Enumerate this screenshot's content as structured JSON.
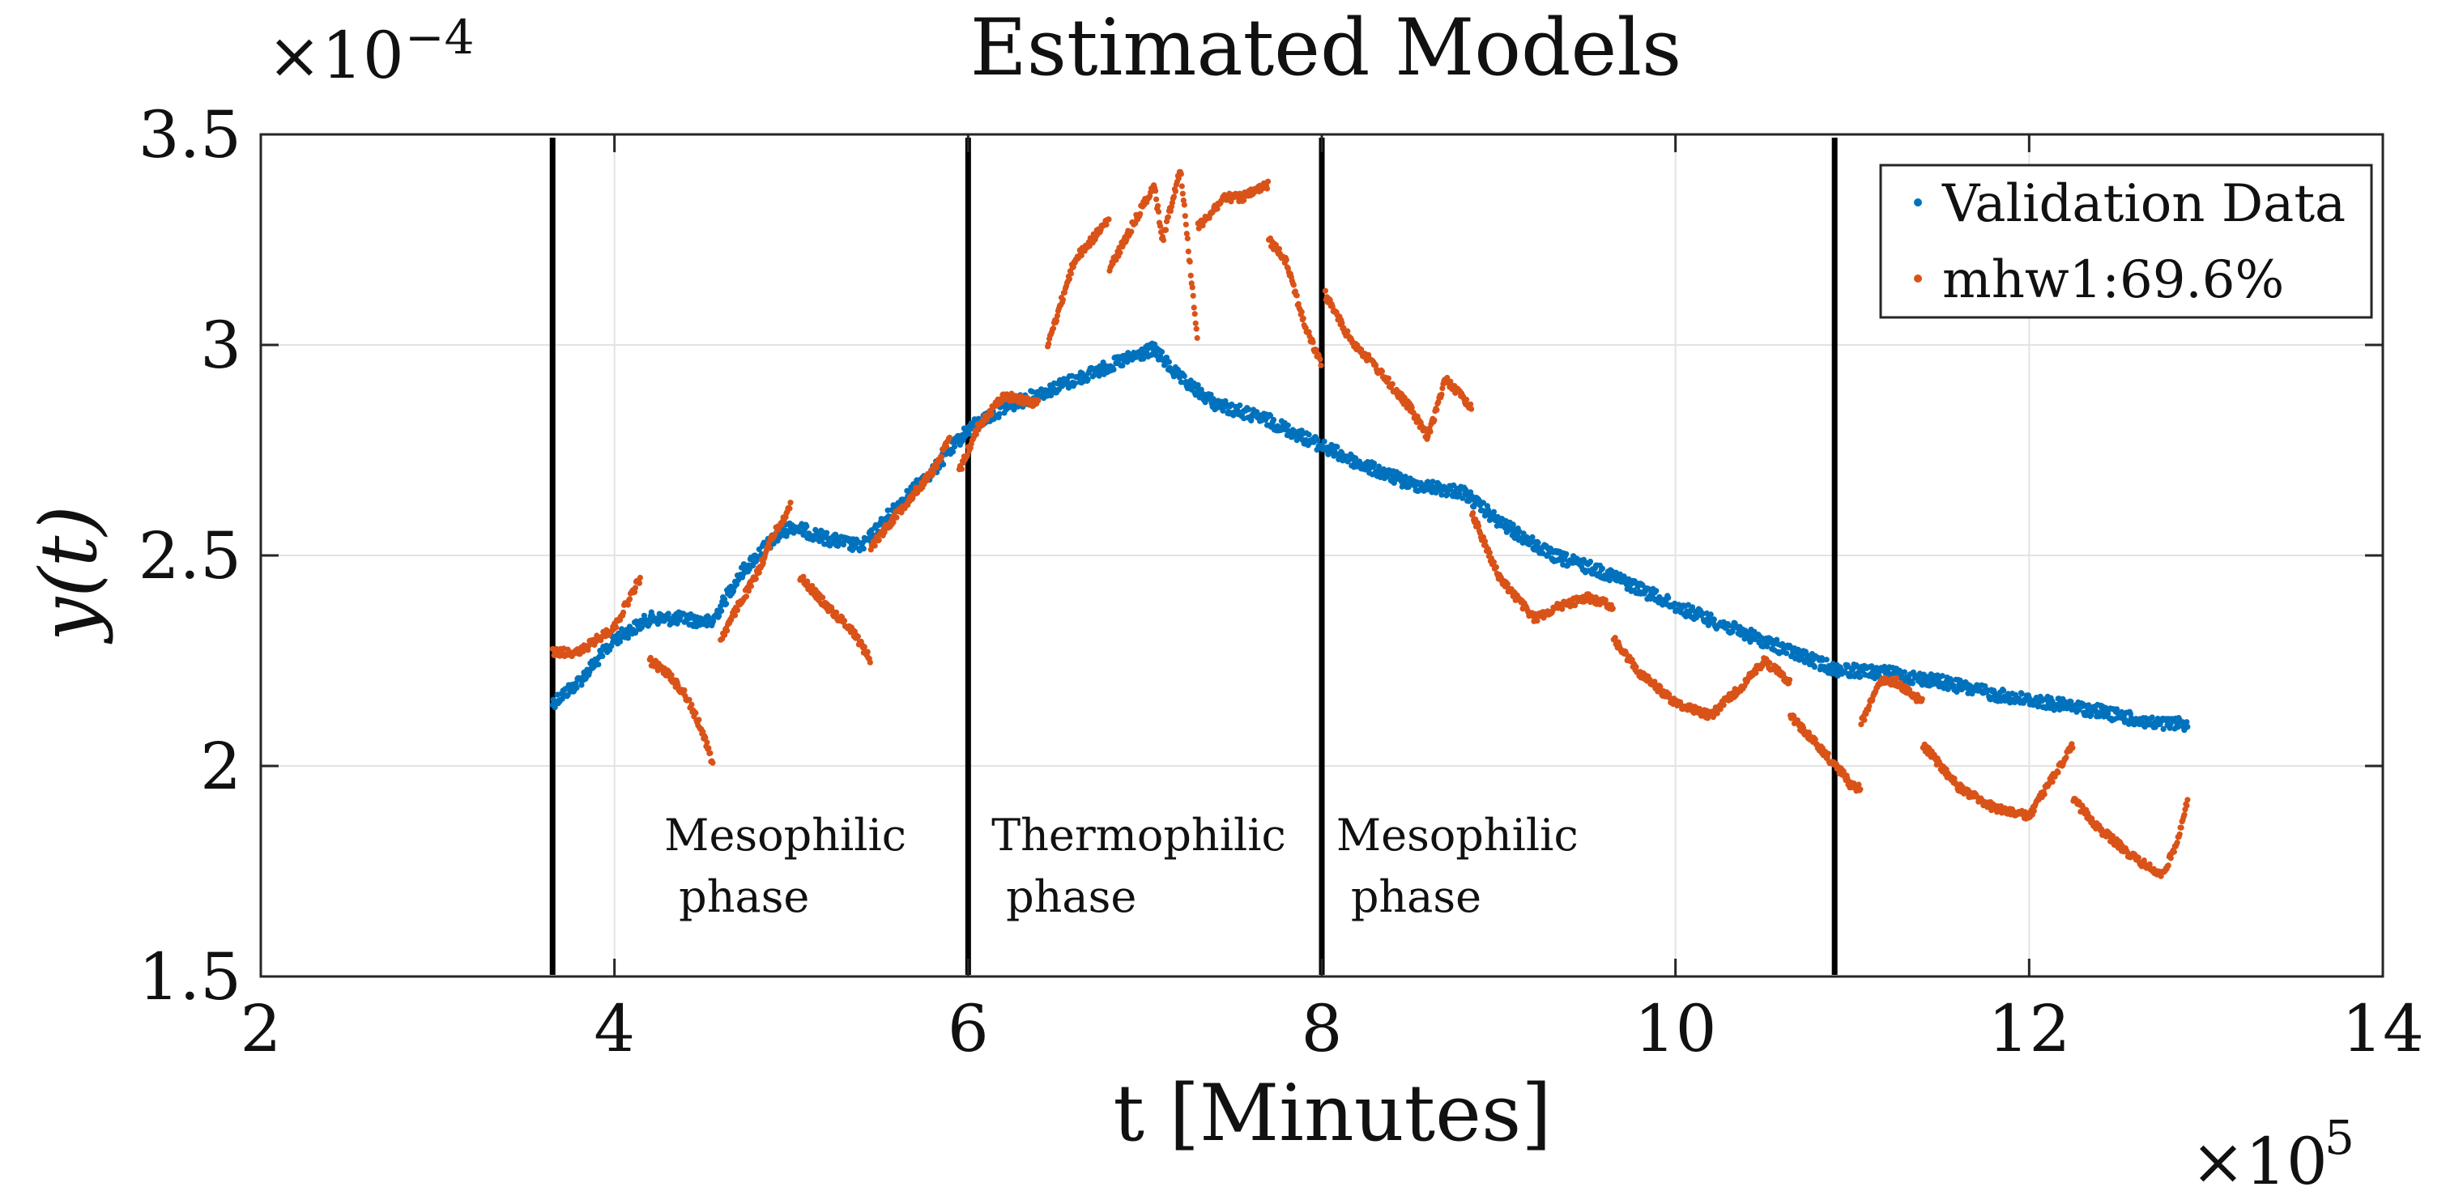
{
  "chart_data": {
    "type": "scatter",
    "title": "Estimated Models",
    "xlabel": "t [Minutes]",
    "ylabel": "y(t)",
    "x_exponent_label": "×10^5",
    "y_exponent_label": "×10^−4",
    "xlim": [
      2,
      14
    ],
    "ylim": [
      1.5,
      3.5
    ],
    "x_ticks": [
      "2",
      "4",
      "6",
      "8",
      "10",
      "12",
      "14"
    ],
    "y_ticks": [
      "1.5",
      "2",
      "2.5",
      "3",
      "3.5"
    ],
    "grid": true,
    "legend_position": "top-right",
    "vertical_lines": [
      3.65,
      6.0,
      8.0,
      10.9
    ],
    "phase_labels": [
      {
        "line1": "Mesophilic",
        "line2": "phase",
        "x": 4.3,
        "y": 1.8
      },
      {
        "line1": "Thermophilic",
        "line2": "phase",
        "x": 6.15,
        "y": 1.8
      },
      {
        "line1": "Mesophilic",
        "line2": "phase",
        "x": 8.1,
        "y": 1.8
      }
    ],
    "series": [
      {
        "name": "Validation Data",
        "color": "#0072BD",
        "x": [
          3.65,
          3.8,
          4.0,
          4.2,
          4.4,
          4.55,
          4.7,
          4.85,
          5.0,
          5.2,
          5.4,
          5.6,
          5.8,
          6.0,
          6.2,
          6.5,
          6.8,
          7.05,
          7.2,
          7.4,
          7.7,
          8.0,
          8.2,
          8.5,
          8.8,
          9.0,
          9.3,
          9.6,
          10.0,
          10.3,
          10.6,
          10.9,
          11.2,
          11.5,
          11.8,
          12.1,
          12.4,
          12.7,
          12.9
        ],
        "y": [
          2.15,
          2.2,
          2.3,
          2.35,
          2.35,
          2.34,
          2.45,
          2.52,
          2.57,
          2.54,
          2.52,
          2.62,
          2.7,
          2.8,
          2.85,
          2.9,
          2.95,
          2.99,
          2.92,
          2.86,
          2.82,
          2.76,
          2.72,
          2.67,
          2.65,
          2.58,
          2.5,
          2.46,
          2.38,
          2.33,
          2.28,
          2.23,
          2.22,
          2.2,
          2.17,
          2.15,
          2.13,
          2.1,
          2.1
        ]
      },
      {
        "name": "mhw1:69.6%",
        "color": "#D95319",
        "segments": [
          {
            "x": [
              3.65,
              3.8,
              4.0,
              4.15
            ],
            "y": [
              2.27,
              2.27,
              2.33,
              2.45
            ]
          },
          {
            "x": [
              4.2,
              4.3,
              4.4,
              4.5,
              4.56
            ],
            "y": [
              2.25,
              2.22,
              2.17,
              2.08,
              2.0
            ]
          },
          {
            "x": [
              4.6,
              4.7,
              4.8,
              4.9,
              5.0
            ],
            "y": [
              2.3,
              2.38,
              2.45,
              2.55,
              2.62
            ]
          },
          {
            "x": [
              5.05,
              5.2,
              5.35,
              5.45
            ],
            "y": [
              2.45,
              2.38,
              2.32,
              2.25
            ]
          },
          {
            "x": [
              5.45,
              5.6,
              5.8,
              5.9
            ],
            "y": [
              2.52,
              2.6,
              2.7,
              2.78
            ]
          },
          {
            "x": [
              5.95,
              6.05,
              6.2,
              6.4
            ],
            "y": [
              2.7,
              2.8,
              2.88,
              2.86
            ]
          },
          {
            "x": [
              6.45,
              6.6,
              6.8
            ],
            "y": [
              3.0,
              3.2,
              3.3
            ]
          },
          {
            "x": [
              6.8,
              6.95,
              7.05,
              7.1,
              7.2,
              7.3
            ],
            "y": [
              3.18,
              3.3,
              3.38,
              3.25,
              3.42,
              3.0
            ]
          },
          {
            "x": [
              7.3,
              7.45,
              7.55,
              7.7
            ],
            "y": [
              3.28,
              3.35,
              3.35,
              3.38
            ]
          },
          {
            "x": [
              7.7,
              7.8,
              7.9,
              8.0
            ],
            "y": [
              3.25,
              3.2,
              3.05,
              2.95
            ]
          },
          {
            "x": [
              8.02,
              8.15,
              8.3,
              8.5,
              8.6,
              8.7,
              8.85
            ],
            "y": [
              3.12,
              3.02,
              2.95,
              2.85,
              2.78,
              2.92,
              2.85
            ]
          },
          {
            "x": [
              8.85,
              9.0,
              9.2,
              9.35,
              9.5,
              9.65
            ],
            "y": [
              2.6,
              2.45,
              2.35,
              2.38,
              2.4,
              2.38
            ]
          },
          {
            "x": [
              9.65,
              9.8,
              10.0,
              10.2,
              10.4,
              10.5,
              10.65
            ],
            "y": [
              2.3,
              2.22,
              2.15,
              2.12,
              2.2,
              2.25,
              2.2
            ]
          },
          {
            "x": [
              10.65,
              10.8,
              10.95,
              11.0,
              11.05
            ],
            "y": [
              2.12,
              2.05,
              1.98,
              1.95,
              1.95
            ]
          },
          {
            "x": [
              11.05,
              11.15,
              11.25,
              11.4
            ],
            "y": [
              2.1,
              2.2,
              2.2,
              2.15
            ]
          },
          {
            "x": [
              11.4,
              11.6,
              11.8,
              12.0,
              12.1,
              12.25
            ],
            "y": [
              2.05,
              1.95,
              1.9,
              1.88,
              1.95,
              2.05
            ]
          },
          {
            "x": [
              12.25,
              12.4,
              12.6,
              12.75,
              12.82,
              12.9
            ],
            "y": [
              1.92,
              1.85,
              1.78,
              1.74,
              1.8,
              1.92
            ]
          }
        ]
      }
    ]
  }
}
